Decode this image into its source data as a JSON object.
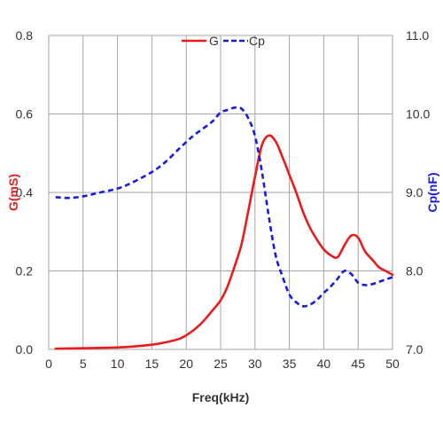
{
  "chart_data": {
    "type": "line",
    "title": "",
    "xlabel": "Freq(kHz)",
    "ylabel": "G(mS)",
    "y2label": "Cp(nF)",
    "xlim": [
      0,
      50
    ],
    "ylim": [
      0,
      0.8
    ],
    "y2lim": [
      7.0,
      11.0
    ],
    "x_ticks": [
      "0",
      "5",
      "10",
      "15",
      "20",
      "25",
      "30",
      "35",
      "40",
      "45",
      "50"
    ],
    "y_ticks": [
      "0.0",
      "0.2",
      "0.4",
      "0.6",
      "0.8"
    ],
    "y2_ticks": [
      "7.0",
      "8.0",
      "9.0",
      "10.0",
      "11.0"
    ],
    "grid": true,
    "legend_position": "top-center",
    "colors": {
      "G": "#e81c1c",
      "Cp": "#1a1adf",
      "ylabel": "#e81c1c",
      "y2label": "#1a1adf",
      "grid": "#a6a6a6"
    },
    "series": [
      {
        "name": "G",
        "axis": "left",
        "style": "solid",
        "x": [
          1,
          5,
          10,
          12,
          15,
          17,
          19,
          20,
          21,
          22,
          23,
          24,
          25,
          26,
          27,
          28,
          29,
          30,
          31,
          32,
          33,
          34,
          35,
          36,
          37,
          38,
          39,
          40,
          41,
          42,
          43,
          44,
          45,
          46,
          47,
          48,
          49,
          50
        ],
        "y": [
          0.002,
          0.003,
          0.005,
          0.007,
          0.012,
          0.018,
          0.027,
          0.036,
          0.048,
          0.063,
          0.082,
          0.103,
          0.125,
          0.16,
          0.21,
          0.265,
          0.35,
          0.44,
          0.52,
          0.545,
          0.53,
          0.49,
          0.445,
          0.4,
          0.35,
          0.31,
          0.28,
          0.255,
          0.24,
          0.235,
          0.265,
          0.29,
          0.285,
          0.25,
          0.23,
          0.21,
          0.2,
          0.19
        ]
      },
      {
        "name": "Cp",
        "axis": "right",
        "style": "dashed",
        "x": [
          1,
          3,
          5,
          7,
          10,
          12,
          15,
          17,
          19,
          21,
          23,
          24,
          25,
          26,
          27,
          28,
          29,
          30,
          31,
          32,
          33,
          34,
          35,
          36,
          37,
          38,
          39,
          40,
          41,
          42,
          43,
          44,
          45,
          46,
          47,
          48,
          49,
          50
        ],
        "y": [
          8.94,
          8.93,
          8.95,
          8.99,
          9.05,
          9.12,
          9.26,
          9.39,
          9.56,
          9.72,
          9.85,
          9.92,
          10.02,
          10.05,
          10.08,
          10.07,
          9.95,
          9.72,
          9.27,
          8.7,
          8.2,
          7.93,
          7.7,
          7.6,
          7.55,
          7.57,
          7.63,
          7.72,
          7.8,
          7.9,
          8.0,
          7.96,
          7.85,
          7.82,
          7.83,
          7.86,
          7.89,
          7.92
        ]
      }
    ]
  }
}
